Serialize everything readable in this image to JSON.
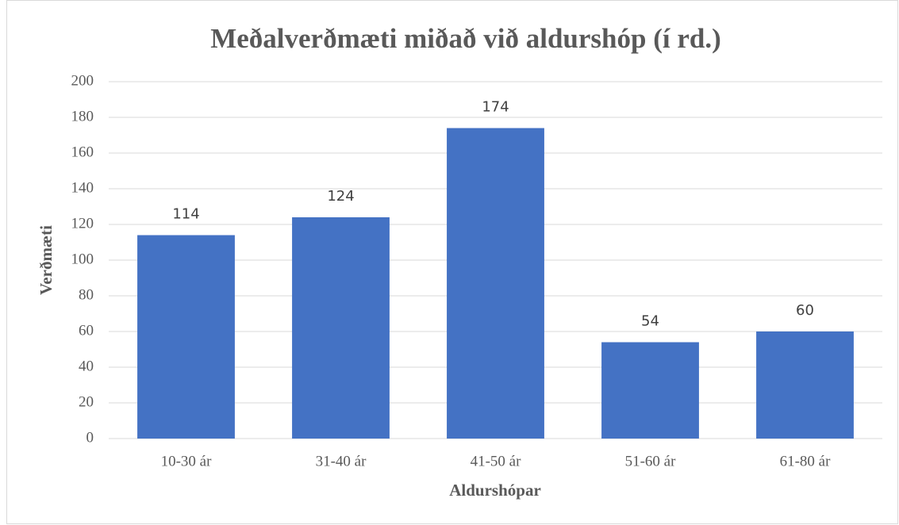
{
  "chart_data": {
    "type": "bar",
    "title": "Meðalverðmæti miðað við aldurshóp (í rd.)",
    "x_label": "Aldurshópar",
    "y_label": "Verðmæti",
    "categories": [
      "10-30 ár",
      "31-40 ár",
      "41-50 ár",
      "51-60 ár",
      "61-80 ár"
    ],
    "values": [
      114,
      124,
      174,
      54,
      60
    ],
    "color": "#4472c4",
    "ylim": [
      0,
      200
    ],
    "yticks": [
      0,
      20,
      40,
      60,
      80,
      100,
      120,
      140,
      160,
      180,
      200
    ],
    "grid": true
  }
}
